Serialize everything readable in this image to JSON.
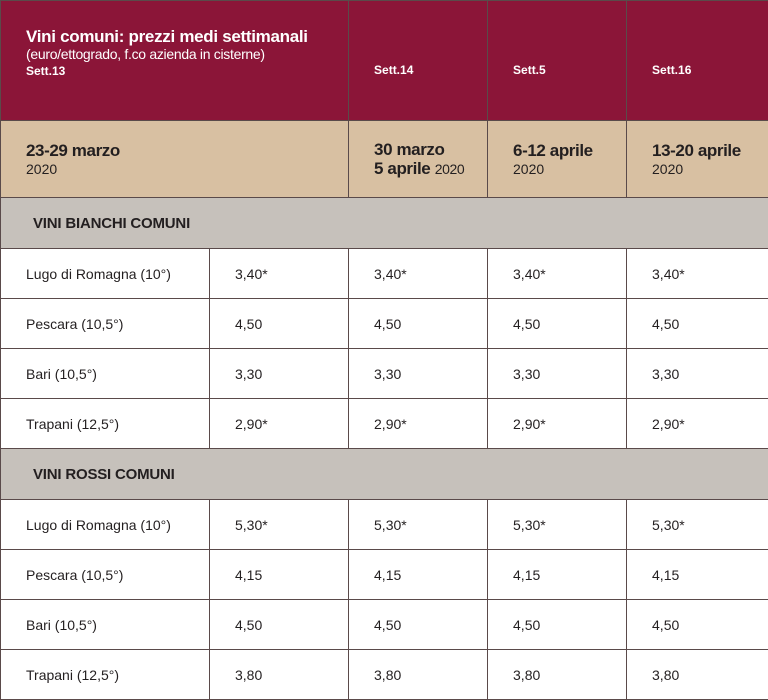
{
  "header": {
    "title": "Vini comuni: prezzi medi settimanali",
    "subtitle": "(euro/ettogrado, f.co azienda in cisterne)",
    "weeks": [
      "Sett.13",
      "Sett.14",
      "Sett.5",
      "Sett.16"
    ]
  },
  "dates": [
    {
      "main": "23-29 marzo",
      "year": "2020"
    },
    {
      "line1": "30 marzo",
      "line2": "5 aprile",
      "year": "2020"
    },
    {
      "main": "6-12 aprile",
      "year": "2020"
    },
    {
      "main": "13-20 aprile",
      "year": "2020"
    }
  ],
  "sections": [
    {
      "title": "VINI BIANCHI COMUNI",
      "rows": [
        {
          "location": "Lugo di Romagna (10°)",
          "values": [
            "3,40*",
            "3,40*",
            "3,40*",
            "3,40*"
          ]
        },
        {
          "location": "Pescara (10,5°)",
          "values": [
            "4,50",
            "4,50",
            "4,50",
            "4,50"
          ]
        },
        {
          "location": "Bari (10,5°)",
          "values": [
            "3,30",
            "3,30",
            "3,30",
            "3,30"
          ]
        },
        {
          "location": "Trapani (12,5°)",
          "values": [
            "2,90*",
            "2,90*",
            "2,90*",
            "2,90*"
          ]
        }
      ]
    },
    {
      "title": "VINI ROSSI COMUNI",
      "rows": [
        {
          "location": "Lugo di Romagna (10°)",
          "values": [
            "5,30*",
            "5,30*",
            "5,30*",
            "5,30*"
          ]
        },
        {
          "location": "Pescara (10,5°)",
          "values": [
            "4,15",
            "4,15",
            "4,15",
            "4,15"
          ]
        },
        {
          "location": "Bari (10,5°)",
          "values": [
            "4,50",
            "4,50",
            "4,50",
            "4,50"
          ]
        },
        {
          "location": "Trapani (12,5°)",
          "values": [
            "3,80",
            "3,80",
            "3,80",
            "3,80"
          ]
        }
      ]
    }
  ]
}
